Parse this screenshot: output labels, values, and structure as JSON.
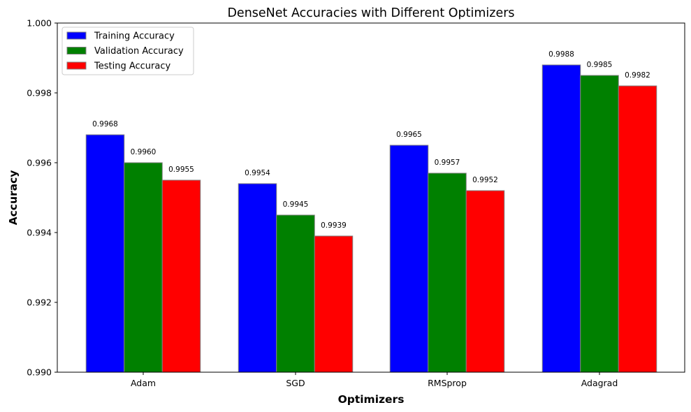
{
  "chart_data": {
    "type": "bar",
    "title": "DenseNet Accuracies with Different Optimizers",
    "xlabel": "Optimizers",
    "ylabel": "Accuracy",
    "categories": [
      "Adam",
      "SGD",
      "RMSprop",
      "Adagrad"
    ],
    "series": [
      {
        "name": "Training Accuracy",
        "color": "#0000ff",
        "values": [
          0.9968,
          0.9954,
          0.9965,
          0.9988
        ],
        "labels": [
          "0.9968",
          "0.9954",
          "0.9965",
          "0.9988"
        ]
      },
      {
        "name": "Validation Accuracy",
        "color": "#008000",
        "values": [
          0.996,
          0.9945,
          0.9957,
          0.9985
        ],
        "labels": [
          "0.9960",
          "0.9945",
          "0.9957",
          "0.9985"
        ]
      },
      {
        "name": "Testing Accuracy",
        "color": "#ff0000",
        "values": [
          0.9955,
          0.9939,
          0.9952,
          0.9982
        ],
        "labels": [
          "0.9955",
          "0.9939",
          "0.9952",
          "0.9982"
        ]
      }
    ],
    "ylim": [
      0.99,
      1.0
    ],
    "yticks": [
      0.99,
      0.992,
      0.994,
      0.996,
      0.998,
      1.0
    ],
    "ytick_labels": [
      "0.990",
      "0.992",
      "0.994",
      "0.996",
      "0.998",
      "1.000"
    ],
    "grid": false,
    "legend_position": "top-left",
    "bar_edge_color": "#808080"
  }
}
